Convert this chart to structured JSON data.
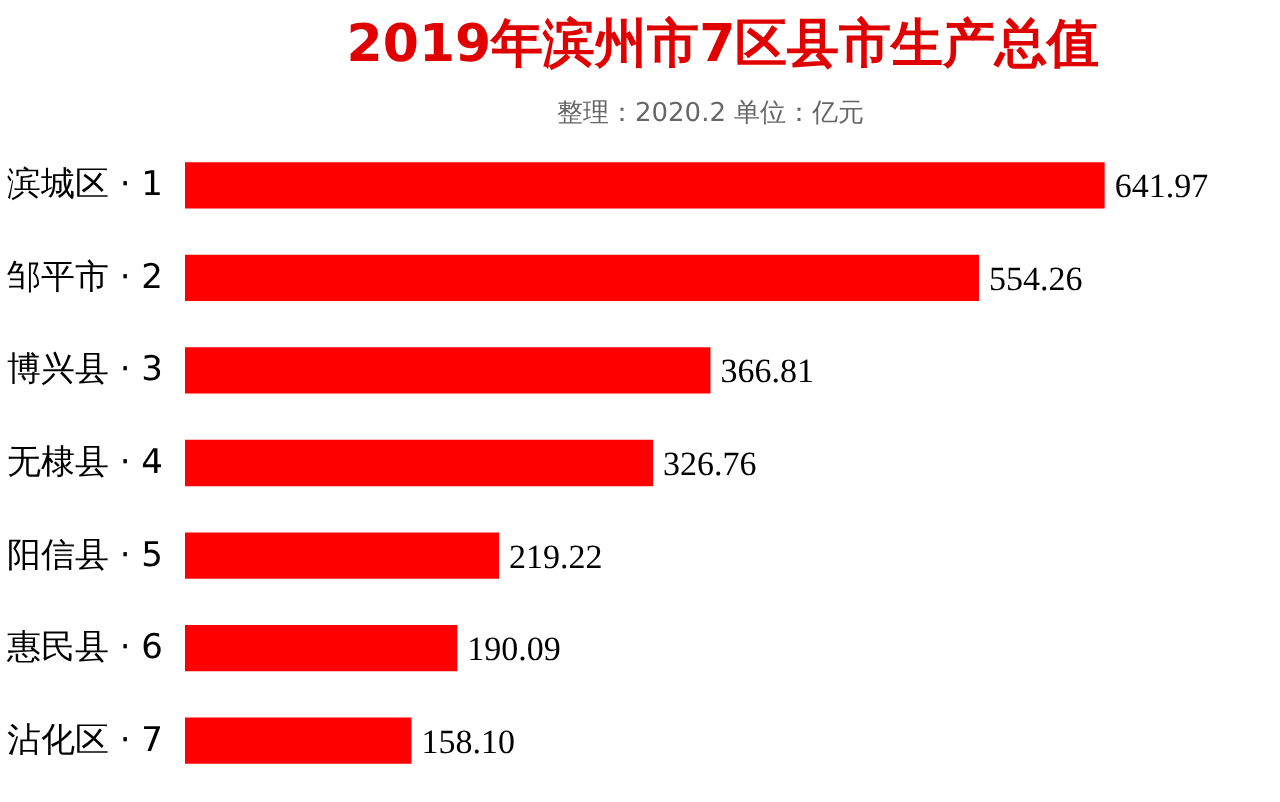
{
  "chart_data": {
    "type": "bar",
    "orientation": "horizontal",
    "title": "2019年滨州市7区县市生产总值",
    "subtitle": "整理：2020.2    单位：亿元",
    "categories": [
      "滨城区 · 1",
      "邹平市 · 2",
      "博兴县 · 3",
      "无棣县 · 4",
      "阳信县 · 5",
      "惠民县 · 6",
      "沾化区 · 7"
    ],
    "values": [
      641.97,
      554.26,
      366.81,
      326.76,
      219.22,
      190.09,
      158.1
    ],
    "value_labels": [
      "641.97",
      "554.26",
      "366.81",
      "326.76",
      "219.22",
      "190.09",
      "158.10"
    ],
    "color": "#ff0000"
  }
}
